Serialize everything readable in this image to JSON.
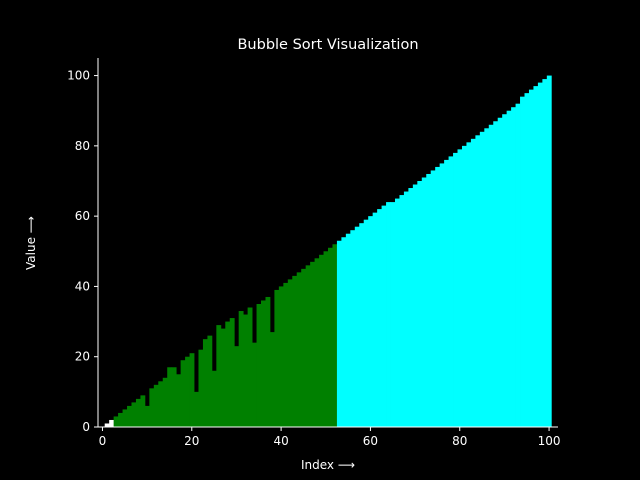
{
  "chart_data": {
    "type": "bar",
    "title": "Bubble Sort Visualization",
    "xlabel": "Index ⟶",
    "ylabel": "Value ⟶",
    "xlim": [
      -1,
      102
    ],
    "ylim": [
      0,
      105
    ],
    "xticks": [
      0,
      20,
      40,
      60,
      80,
      100
    ],
    "yticks": [
      0,
      20,
      40,
      60,
      80,
      100
    ],
    "grid": false,
    "colors": {
      "background": "#000000",
      "unsorted": "#008000",
      "sorted": "#00ffff",
      "active": "#ffffff",
      "text": "#ffffff"
    },
    "sorted_from_index": 53,
    "active_indices": [
      1,
      2
    ],
    "values": [
      0,
      1,
      2,
      3,
      4,
      5,
      6,
      7,
      8,
      9,
      6,
      11,
      12,
      13,
      14,
      17,
      17,
      15,
      19,
      20,
      21,
      10,
      22,
      25,
      26,
      16,
      29,
      28,
      30,
      31,
      23,
      33,
      32,
      34,
      24,
      35,
      36,
      37,
      27,
      39,
      40,
      41,
      42,
      43,
      44,
      45,
      46,
      47,
      48,
      49,
      50,
      51,
      52,
      53,
      54,
      55,
      56,
      57,
      58,
      59,
      60,
      61,
      62,
      63,
      64,
      64,
      65,
      66,
      67,
      68,
      69,
      70,
      71,
      72,
      73,
      74,
      75,
      76,
      77,
      78,
      79,
      80,
      81,
      82,
      83,
      84,
      85,
      86,
      87,
      88,
      89,
      90,
      91,
      92,
      94,
      95,
      96,
      97,
      98,
      99,
      100
    ]
  }
}
